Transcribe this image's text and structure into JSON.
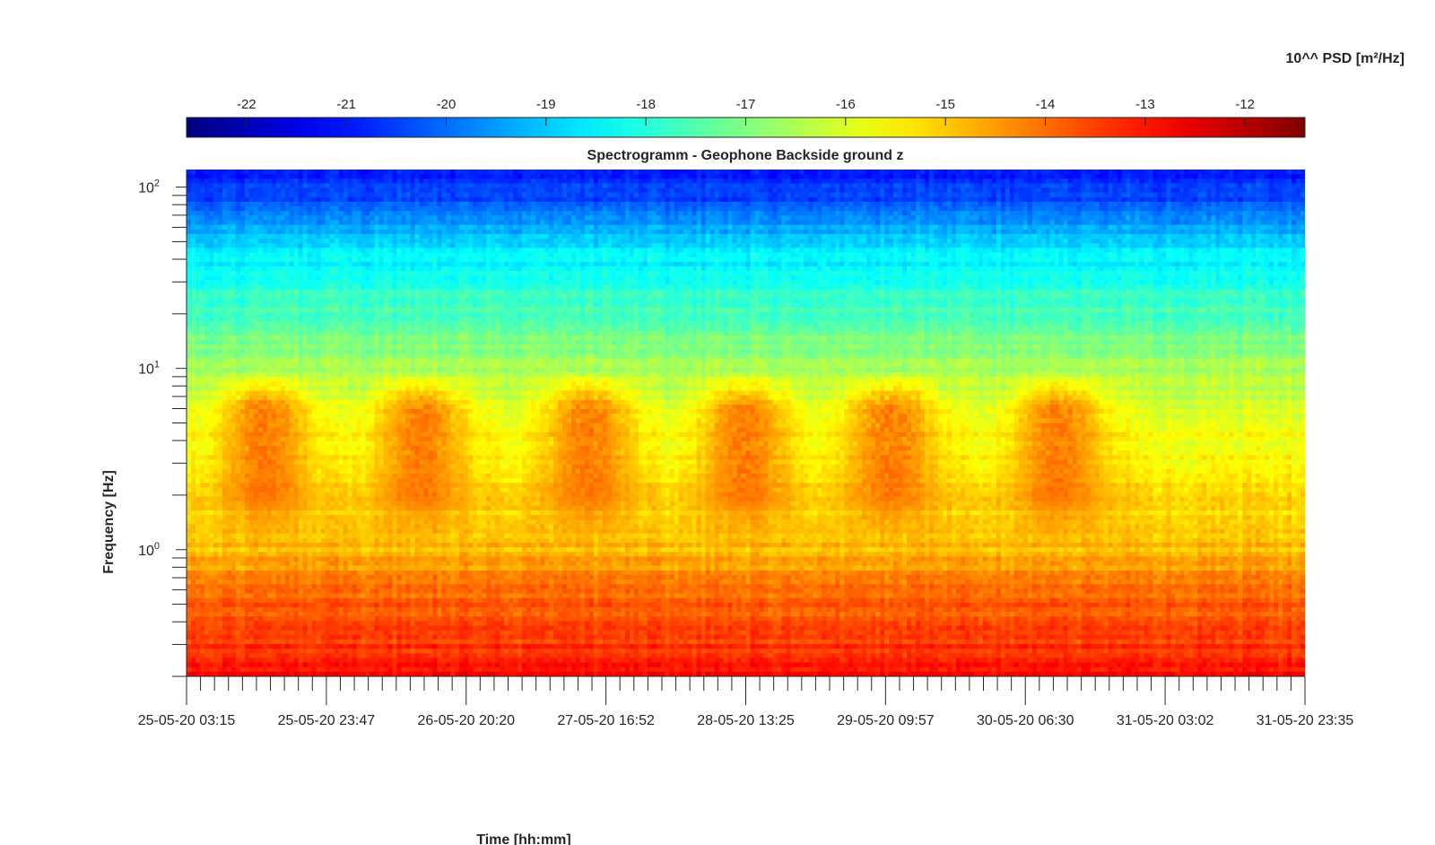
{
  "chart_data": {
    "type": "heatmap",
    "title": "Spectrogramm - Geophone Backside ground z",
    "xlabel": "Time [hh:mm]",
    "ylabel": "Frequency [Hz]",
    "yscale": "log",
    "ylim": [
      0.2,
      125
    ],
    "y_ticks": [
      {
        "value": 1,
        "base": "10",
        "exp": "0"
      },
      {
        "value": 10,
        "base": "10",
        "exp": "1"
      },
      {
        "value": 100,
        "base": "10",
        "exp": "2"
      }
    ],
    "x_tick_labels": [
      "25-05-20 03:15",
      "25-05-20 23:47",
      "26-05-20 20:20",
      "27-05-20 16:52",
      "28-05-20 13:25",
      "29-05-20 09:57",
      "30-05-20 06:30",
      "31-05-20 03:02",
      "31-05-20 23:35"
    ],
    "colorbar": {
      "label": "10^^ PSD [m²/Hz]",
      "ticks": [
        "-22",
        "-21",
        "-20",
        "-19",
        "-18",
        "-17",
        "-16",
        "-15",
        "-14",
        "-13",
        "-12"
      ],
      "range": [
        -22.6,
        -11.4
      ],
      "colormap": "jet",
      "placement": "top"
    },
    "psd_profile_log10": [
      {
        "f": 0.2,
        "v": -12.9
      },
      {
        "f": 0.3,
        "v": -13.4
      },
      {
        "f": 0.7,
        "v": -14.2
      },
      {
        "f": 1.0,
        "v": -14.9
      },
      {
        "f": 2.0,
        "v": -15.2
      },
      {
        "f": 5.0,
        "v": -15.8
      },
      {
        "f": 10,
        "v": -16.6
      },
      {
        "f": 20,
        "v": -17.6
      },
      {
        "f": 50,
        "v": -18.8
      },
      {
        "f": 80,
        "v": -20.3
      },
      {
        "f": 125,
        "v": -21.0
      }
    ],
    "daily_activity": {
      "band_hz": [
        2,
        6
      ],
      "peak_log10": -13.9,
      "centers_fraction_of_time": [
        0.07,
        0.21,
        0.36,
        0.5,
        0.63,
        0.78
      ]
    },
    "grid": false
  }
}
